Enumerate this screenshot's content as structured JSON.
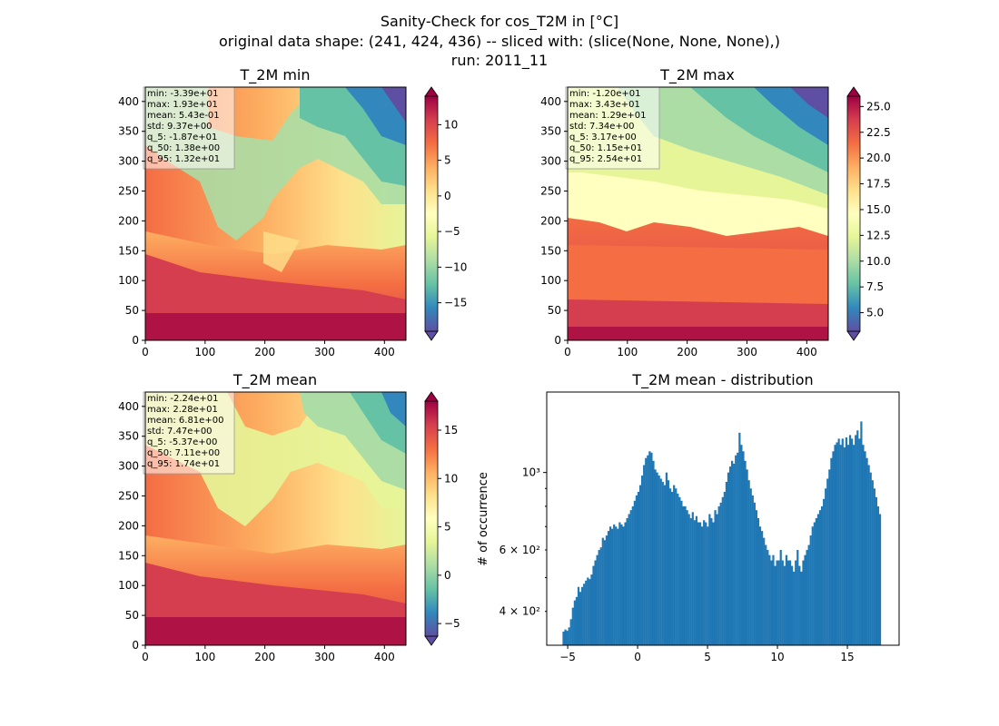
{
  "figure": {
    "title_lines": [
      "Sanity-Check for cos_T2M in [°C]",
      "original data shape: (241, 424, 436) -- sliced with: (slice(None, None, None),)",
      "run: 2011_11"
    ]
  },
  "chart_data": [
    {
      "type": "heatmap",
      "title": "T_2M min",
      "colormap": "Spectral_r",
      "x_ticks": [
        0,
        100,
        200,
        300,
        400
      ],
      "y_ticks": [
        0,
        50,
        100,
        150,
        200,
        250,
        300,
        350,
        400
      ],
      "xlim": [
        0,
        436
      ],
      "ylim": [
        0,
        424
      ],
      "colorbar": {
        "range": [
          -19,
          14
        ],
        "ticks": [
          10,
          5,
          0,
          -5,
          -10,
          -15
        ],
        "tick_labels": [
          "10",
          "5",
          "0",
          "−5",
          "−10",
          "−15"
        ]
      },
      "stats": [
        "min: -3.39e+01",
        "max: 1.93e+01",
        "mean: 5.43e-01",
        "std: 9.37e+00",
        "q_5: -1.87e+01",
        "q_50: 1.38e+00",
        "q_95: 1.32e+01"
      ]
    },
    {
      "type": "heatmap",
      "title": "T_2M max",
      "colormap": "Spectral_r",
      "x_ticks": [
        0,
        100,
        200,
        300,
        400
      ],
      "y_ticks": [
        0,
        50,
        100,
        150,
        200,
        250,
        300,
        350,
        400
      ],
      "xlim": [
        0,
        436
      ],
      "ylim": [
        0,
        424
      ],
      "colorbar": {
        "range": [
          3.2,
          26
        ],
        "ticks": [
          25,
          22.5,
          20,
          17.5,
          15,
          12.5,
          10,
          7.5,
          5
        ],
        "tick_labels": [
          "25.0",
          "22.5",
          "20.0",
          "17.5",
          "15.0",
          "12.5",
          "10.0",
          "7.5",
          "5.0"
        ]
      },
      "stats": [
        "min: -1.20e+01",
        "max: 3.43e+01",
        "mean: 1.29e+01",
        "std: 7.34e+00",
        "q_5: 3.17e+00",
        "q_50: 1.15e+01",
        "q_95: 2.54e+01"
      ]
    },
    {
      "type": "heatmap",
      "title": "T_2M mean",
      "colormap": "Spectral_r",
      "x_ticks": [
        0,
        100,
        200,
        300,
        400
      ],
      "y_ticks": [
        0,
        50,
        100,
        150,
        200,
        250,
        300,
        350,
        400
      ],
      "xlim": [
        0,
        436
      ],
      "ylim": [
        0,
        424
      ],
      "colorbar": {
        "range": [
          -6.3,
          18
        ],
        "ticks": [
          15,
          10,
          5,
          0,
          -5
        ],
        "tick_labels": [
          "15",
          "10",
          "5",
          "0",
          "−5"
        ]
      },
      "stats": [
        "min: -2.24e+01",
        "max: 2.28e+01",
        "mean: 6.81e+00",
        "std: 7.47e+00",
        "q_5: -5.37e+00",
        "q_50: 7.11e+00",
        "q_95: 1.74e+01"
      ]
    },
    {
      "type": "bar",
      "title": "T_2M mean - distribution",
      "xlabel": "",
      "ylabel": "# of occurrence",
      "log_y": true,
      "xlim": [
        -6.5,
        18.7
      ],
      "ylim": [
        320,
        1700
      ],
      "x_ticks": [
        -5,
        0,
        5,
        10,
        15
      ],
      "x_tick_labels": [
        "−5",
        "0",
        "5",
        "10",
        "15"
      ],
      "y_major_ticks": [
        1000
      ],
      "y_major_labels": [
        "10³"
      ],
      "y_minor_ticks": [
        400,
        600
      ],
      "y_minor_labels": [
        "4 × 10²",
        "6 × 10²"
      ],
      "color": "#1f77b4",
      "bin_range": [
        -5.37,
        17.4
      ],
      "values": [
        350,
        355,
        352,
        360,
        380,
        410,
        430,
        440,
        470,
        455,
        470,
        480,
        490,
        500,
        495,
        510,
        540,
        560,
        580,
        600,
        610,
        650,
        640,
        660,
        680,
        700,
        690,
        710,
        700,
        690,
        720,
        710,
        700,
        720,
        740,
        760,
        780,
        800,
        830,
        860,
        880,
        920,
        980,
        1050,
        1100,
        1120,
        1150,
        1140,
        1080,
        1020,
        1000,
        980,
        960,
        940,
        920,
        1000,
        950,
        900,
        880,
        920,
        900,
        870,
        850,
        830,
        800,
        800,
        780,
        760,
        740,
        770,
        730,
        750,
        720,
        720,
        700,
        730,
        720,
        700,
        760,
        740,
        720,
        780,
        760,
        800,
        820,
        850,
        880,
        940,
        1000,
        1040,
        1080,
        1060,
        1120,
        1140,
        1300,
        1200,
        1150,
        1080,
        1020,
        950,
        900,
        860,
        820,
        780,
        740,
        700,
        680,
        650,
        620,
        600,
        580,
        560,
        580,
        540,
        560,
        560,
        600,
        560,
        540,
        580,
        560,
        560,
        540,
        520,
        560,
        600,
        540,
        520,
        560,
        580,
        600,
        620,
        660,
        700,
        720,
        740,
        760,
        780,
        800,
        840,
        900,
        960,
        1020,
        1100,
        1150,
        1200,
        1220,
        1250,
        1200,
        1250,
        1180,
        1260,
        1200,
        1280,
        1250,
        1200,
        1280,
        1320,
        1250,
        1400,
        1200,
        1150,
        1100,
        1050,
        1000,
        950,
        900,
        850,
        800,
        760
      ]
    }
  ]
}
